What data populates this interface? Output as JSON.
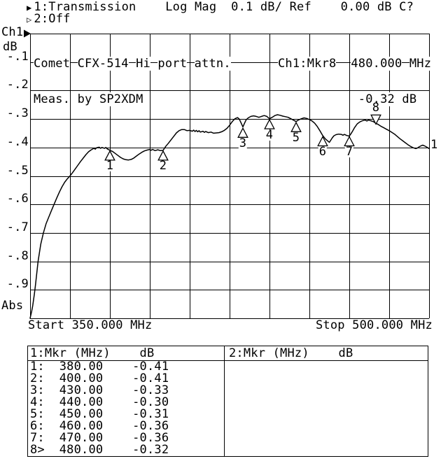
{
  "header": {
    "ch1_marker_icon": "▶",
    "ch1_line": "1:Transmission    Log Mag  0.1 dB/ Ref    0.00 dB C?",
    "ch2_marker_icon": "▷",
    "ch2_line": "2:Off"
  },
  "axis": {
    "channel": "Ch1",
    "unit": "dB",
    "bottom_label": "Abs",
    "y_tick_labels": [
      "-.1",
      "-.2",
      "-.3",
      "-.4",
      "-.5",
      "-.6",
      "-.7",
      "-.8",
      "-.9"
    ],
    "start_label": "Start 350.000 MHz",
    "stop_label": "Stop 500.000 MHz"
  },
  "annotations": {
    "title_line1": "Comet CFX-514 Hi port attn.",
    "title_line2": "Meas. by SP2XDM",
    "readout_line1": "Ch1:Mkr8  480.000 MHz",
    "readout_line2": "           -0.32 dB",
    "trace_end_label": "1"
  },
  "colors": {
    "foreground": "#000000",
    "background": "#ffffff"
  },
  "chart_data": {
    "type": "line",
    "title": "Comet CFX-514 Hi port attn.",
    "subtitle": "Meas. by SP2XDM",
    "x_axis": {
      "unit": "MHz",
      "start": 350.0,
      "stop": 500.0,
      "divisions": 10
    },
    "y_axis": {
      "unit": "dB",
      "format": "Log Mag",
      "ref": 0.0,
      "per_div": 0.1,
      "min": -1.0,
      "divisions": 10
    },
    "grid": true,
    "legend": "Ch1 Transmission",
    "trace": [
      [
        350,
        -1.0
      ],
      [
        350.6,
        -0.975
      ],
      [
        351,
        -0.955
      ],
      [
        351.6,
        -0.915
      ],
      [
        352,
        -0.885
      ],
      [
        353,
        -0.8
      ],
      [
        354,
        -0.74
      ],
      [
        355,
        -0.7
      ],
      [
        356,
        -0.668
      ],
      [
        357,
        -0.645
      ],
      [
        358,
        -0.622
      ],
      [
        359,
        -0.6
      ],
      [
        360,
        -0.578
      ],
      [
        361,
        -0.557
      ],
      [
        362,
        -0.538
      ],
      [
        363,
        -0.522
      ],
      [
        364,
        -0.51
      ],
      [
        365,
        -0.5
      ],
      [
        366,
        -0.488
      ],
      [
        367,
        -0.475
      ],
      [
        368,
        -0.462
      ],
      [
        369,
        -0.449
      ],
      [
        370,
        -0.437
      ],
      [
        371,
        -0.425
      ],
      [
        372,
        -0.415
      ],
      [
        373,
        -0.408
      ],
      [
        374,
        -0.403
      ],
      [
        374.5,
        -0.406
      ],
      [
        375,
        -0.401
      ],
      [
        376,
        -0.399
      ],
      [
        376.5,
        -0.403
      ],
      [
        377,
        -0.4
      ],
      [
        378,
        -0.403
      ],
      [
        378.5,
        -0.4
      ],
      [
        379,
        -0.405
      ],
      [
        380,
        -0.41
      ],
      [
        381,
        -0.414
      ],
      [
        382,
        -0.421
      ],
      [
        383,
        -0.428
      ],
      [
        384,
        -0.435
      ],
      [
        385,
        -0.44
      ],
      [
        386,
        -0.443
      ],
      [
        387,
        -0.444
      ],
      [
        388,
        -0.442
      ],
      [
        389,
        -0.437
      ],
      [
        390,
        -0.43
      ],
      [
        391,
        -0.423
      ],
      [
        392,
        -0.417
      ],
      [
        393,
        -0.412
      ],
      [
        394,
        -0.409
      ],
      [
        395,
        -0.407
      ],
      [
        395.5,
        -0.41
      ],
      [
        396,
        -0.407
      ],
      [
        397,
        -0.411
      ],
      [
        398,
        -0.408
      ],
      [
        399,
        -0.411
      ],
      [
        400,
        -0.41
      ],
      [
        401,
        -0.396
      ],
      [
        402,
        -0.385
      ],
      [
        403,
        -0.373
      ],
      [
        404,
        -0.361
      ],
      [
        405,
        -0.349
      ],
      [
        406,
        -0.341
      ],
      [
        407,
        -0.337
      ],
      [
        408,
        -0.337
      ],
      [
        409,
        -0.341
      ],
      [
        410,
        -0.34
      ],
      [
        411,
        -0.343
      ],
      [
        411.5,
        -0.339
      ],
      [
        412,
        -0.344
      ],
      [
        412.5,
        -0.34
      ],
      [
        413,
        -0.345
      ],
      [
        413.5,
        -0.341
      ],
      [
        414,
        -0.346
      ],
      [
        415,
        -0.343
      ],
      [
        415.5,
        -0.347
      ],
      [
        416,
        -0.344
      ],
      [
        417,
        -0.348
      ],
      [
        418,
        -0.346
      ],
      [
        419,
        -0.35
      ],
      [
        420,
        -0.349
      ],
      [
        421,
        -0.348
      ],
      [
        422,
        -0.345
      ],
      [
        423,
        -0.34
      ],
      [
        424,
        -0.333
      ],
      [
        425,
        -0.322
      ],
      [
        426,
        -0.309
      ],
      [
        427,
        -0.299
      ],
      [
        428,
        -0.295
      ],
      [
        428.6,
        -0.3
      ],
      [
        429.3,
        -0.313
      ],
      [
        430,
        -0.328
      ],
      [
        430.6,
        -0.315
      ],
      [
        431.2,
        -0.303
      ],
      [
        432,
        -0.296
      ],
      [
        433,
        -0.291
      ],
      [
        434,
        -0.289
      ],
      [
        435,
        -0.291
      ],
      [
        436,
        -0.294
      ],
      [
        437,
        -0.291
      ],
      [
        438,
        -0.288
      ],
      [
        439,
        -0.291
      ],
      [
        440,
        -0.299
      ],
      [
        441,
        -0.294
      ],
      [
        442,
        -0.288
      ],
      [
        443,
        -0.285
      ],
      [
        444,
        -0.287
      ],
      [
        445,
        -0.29
      ],
      [
        446,
        -0.292
      ],
      [
        447,
        -0.294
      ],
      [
        448,
        -0.299
      ],
      [
        449,
        -0.304
      ],
      [
        450,
        -0.309
      ],
      [
        451,
        -0.303
      ],
      [
        452,
        -0.299
      ],
      [
        453,
        -0.296
      ],
      [
        454,
        -0.298
      ],
      [
        455,
        -0.302
      ],
      [
        456,
        -0.307
      ],
      [
        457,
        -0.315
      ],
      [
        458,
        -0.327
      ],
      [
        459,
        -0.342
      ],
      [
        460,
        -0.358
      ],
      [
        461,
        -0.37
      ],
      [
        462,
        -0.378
      ],
      [
        462.5,
        -0.382
      ],
      [
        463,
        -0.375
      ],
      [
        463.6,
        -0.366
      ],
      [
        464.2,
        -0.359
      ],
      [
        465,
        -0.355
      ],
      [
        466,
        -0.353
      ],
      [
        467,
        -0.354
      ],
      [
        467.6,
        -0.357
      ],
      [
        468.2,
        -0.354
      ],
      [
        469,
        -0.358
      ],
      [
        470,
        -0.36
      ],
      [
        470.6,
        -0.352
      ],
      [
        471.2,
        -0.343
      ],
      [
        472,
        -0.33
      ],
      [
        473,
        -0.317
      ],
      [
        474,
        -0.31
      ],
      [
        475,
        -0.306
      ],
      [
        476,
        -0.304
      ],
      [
        476.6,
        -0.307
      ],
      [
        477.2,
        -0.304
      ],
      [
        478,
        -0.306
      ],
      [
        479,
        -0.309
      ],
      [
        480,
        -0.315
      ],
      [
        481,
        -0.32
      ],
      [
        482,
        -0.326
      ],
      [
        483,
        -0.331
      ],
      [
        484,
        -0.336
      ],
      [
        485,
        -0.341
      ],
      [
        486,
        -0.347
      ],
      [
        487,
        -0.353
      ],
      [
        488,
        -0.361
      ],
      [
        489,
        -0.369
      ],
      [
        490,
        -0.376
      ],
      [
        491,
        -0.383
      ],
      [
        492,
        -0.39
      ],
      [
        493,
        -0.396
      ],
      [
        494,
        -0.401
      ],
      [
        495,
        -0.404
      ],
      [
        495.6,
        -0.402
      ],
      [
        496.2,
        -0.398
      ],
      [
        497,
        -0.394
      ],
      [
        497.6,
        -0.392
      ],
      [
        498.2,
        -0.394
      ],
      [
        499,
        -0.398
      ],
      [
        500,
        -0.404
      ]
    ],
    "markers": [
      {
        "n": "1",
        "mhz": 380.0,
        "db": -0.41,
        "active": false
      },
      {
        "n": "2",
        "mhz": 400.0,
        "db": -0.41,
        "active": false
      },
      {
        "n": "3",
        "mhz": 430.0,
        "db": -0.33,
        "active": false
      },
      {
        "n": "4",
        "mhz": 440.0,
        "db": -0.3,
        "active": false
      },
      {
        "n": "5",
        "mhz": 450.0,
        "db": -0.31,
        "active": false
      },
      {
        "n": "6",
        "mhz": 460.0,
        "db": -0.36,
        "active": false
      },
      {
        "n": "7",
        "mhz": 470.0,
        "db": -0.36,
        "active": false
      },
      {
        "n": "8",
        "mhz": 480.0,
        "db": -0.32,
        "active": true
      }
    ]
  },
  "marker_table": {
    "left": {
      "header": "1:Mkr (MHz)    dB",
      "rows": [
        {
          "label": "1:",
          "mhz": "380.00",
          "db": "-0.41"
        },
        {
          "label": "2:",
          "mhz": "400.00",
          "db": "-0.41"
        },
        {
          "label": "3:",
          "mhz": "430.00",
          "db": "-0.33"
        },
        {
          "label": "4:",
          "mhz": "440.00",
          "db": "-0.30"
        },
        {
          "label": "5:",
          "mhz": "450.00",
          "db": "-0.31"
        },
        {
          "label": "6:",
          "mhz": "460.00",
          "db": "-0.36"
        },
        {
          "label": "7:",
          "mhz": "470.00",
          "db": "-0.36"
        },
        {
          "label": "8>",
          "mhz": "480.00",
          "db": "-0.32"
        }
      ]
    },
    "right": {
      "header": "2:Mkr (MHz)    dB",
      "rows": []
    }
  }
}
